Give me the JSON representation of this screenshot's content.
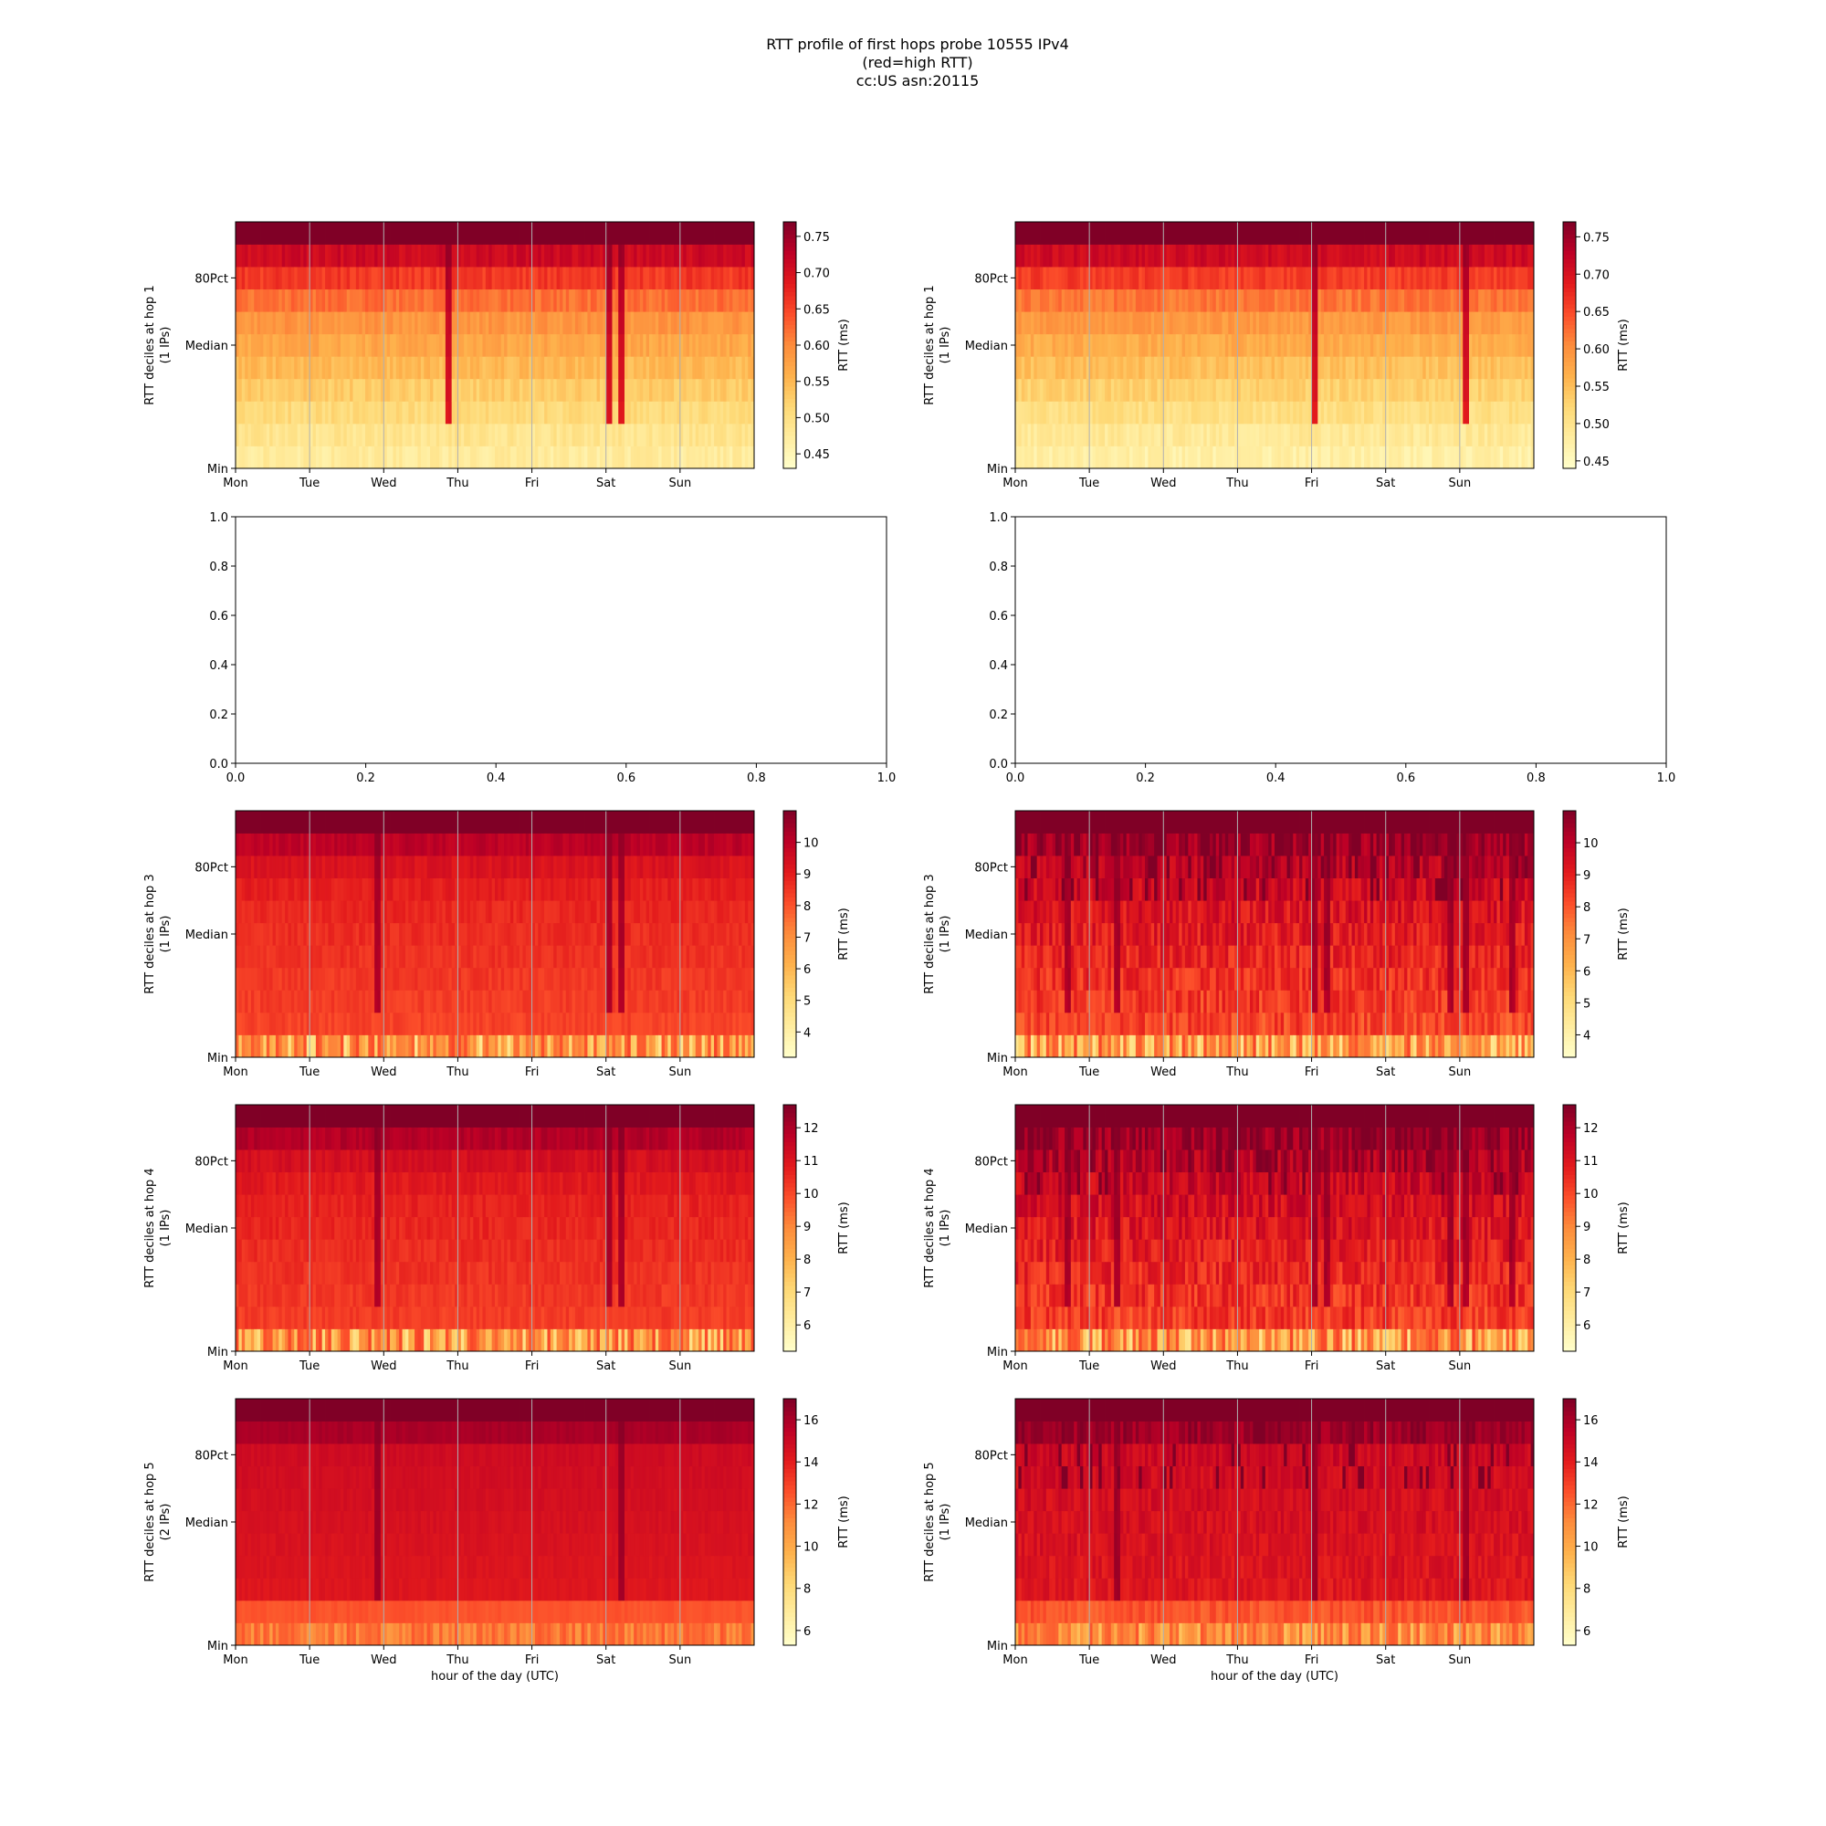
{
  "figure": {
    "title_lines": [
      "RTT profile of first hops probe 10555 IPv4",
      "(red=high RTT)",
      "cc:US asn:20115"
    ]
  },
  "chart_data": [
    {
      "type": "heatmap",
      "hop": 1,
      "ylabel": [
        "RTT deciles at hop 1",
        "(1 IPs)"
      ],
      "ytick_labels": [
        "Min",
        "Median",
        "80Pct"
      ],
      "x_ticks": [
        "Mon",
        "Tue",
        "Wed",
        "Thu",
        "Fri",
        "Sat",
        "Sun"
      ],
      "xlabel": "",
      "colorbar": {
        "label": "RTT (ms)",
        "ticks": [
          0.45,
          0.5,
          0.55,
          0.6,
          0.65,
          0.7,
          0.75
        ],
        "range": [
          0.43,
          0.77
        ]
      },
      "decile_rtt_ms": [
        0.46,
        0.49,
        0.51,
        0.53,
        0.55,
        0.57,
        0.59,
        0.62,
        0.66,
        0.71,
        0.77
      ],
      "variability": 0.015,
      "spike_hours": [
        68,
        120,
        124
      ],
      "vgrid": true
    },
    {
      "type": "heatmap",
      "hop": 1,
      "ylabel": [
        "RTT deciles at hop 1",
        "(1 IPs)"
      ],
      "ytick_labels": [
        "Min",
        "Median",
        "80Pct"
      ],
      "x_ticks": [
        "Mon",
        "Tue",
        "Wed",
        "Thu",
        "Fri",
        "Sat",
        "Sun"
      ],
      "xlabel": "",
      "colorbar": {
        "label": "RTT (ms)",
        "ticks": [
          0.45,
          0.5,
          0.55,
          0.6,
          0.65,
          0.7,
          0.75
        ],
        "range": [
          0.44,
          0.77
        ]
      },
      "decile_rtt_ms": [
        0.46,
        0.49,
        0.51,
        0.53,
        0.55,
        0.57,
        0.59,
        0.62,
        0.66,
        0.71,
        0.77
      ],
      "variability": 0.015,
      "spike_hours": [
        96,
        145
      ],
      "vgrid": true
    },
    {
      "type": "empty",
      "x_ticks": [
        "0.0",
        "0.2",
        "0.4",
        "0.6",
        "0.8",
        "1.0"
      ],
      "y_ticks": [
        "0.0",
        "0.2",
        "0.4",
        "0.6",
        "0.8",
        "1.0"
      ]
    },
    {
      "type": "empty",
      "x_ticks": [
        "0.0",
        "0.2",
        "0.4",
        "0.6",
        "0.8",
        "1.0"
      ],
      "y_ticks": [
        "0.0",
        "0.2",
        "0.4",
        "0.6",
        "0.8",
        "1.0"
      ]
    },
    {
      "type": "heatmap",
      "hop": 3,
      "ylabel": [
        "RTT deciles at hop 3",
        "(1 IPs)"
      ],
      "ytick_labels": [
        "Min",
        "Median",
        "80Pct"
      ],
      "x_ticks": [
        "Mon",
        "Tue",
        "Wed",
        "Thu",
        "Fri",
        "Sat",
        "Sun"
      ],
      "xlabel": "",
      "colorbar": {
        "label": "RTT (ms)",
        "ticks": [
          4,
          5,
          6,
          7,
          8,
          9,
          10
        ],
        "range": [
          3.2,
          11.0
        ]
      },
      "decile_rtt_ms": [
        4.5,
        8.3,
        8.4,
        8.5,
        8.6,
        8.7,
        8.8,
        9.0,
        9.3,
        10.0,
        11.0
      ],
      "variability": 0.25,
      "spike_hours": [
        45,
        120,
        124
      ],
      "vgrid": true
    },
    {
      "type": "heatmap",
      "hop": 3,
      "ylabel": [
        "RTT deciles at hop 3",
        "(1 IPs)"
      ],
      "ytick_labels": [
        "Min",
        "Median",
        "80Pct"
      ],
      "x_ticks": [
        "Mon",
        "Tue",
        "Wed",
        "Thu",
        "Fri",
        "Sat",
        "Sun"
      ],
      "xlabel": "",
      "colorbar": {
        "label": "RTT (ms)",
        "ticks": [
          4,
          5,
          6,
          7,
          8,
          9,
          10
        ],
        "range": [
          3.3,
          11.0
        ]
      },
      "decile_rtt_ms": [
        4.5,
        8.3,
        8.5,
        8.7,
        8.9,
        9.1,
        9.3,
        9.6,
        10.0,
        10.5,
        11.0
      ],
      "variability": 0.7,
      "spike_hours": [
        16,
        32,
        96,
        100,
        140,
        145,
        160
      ],
      "vgrid": true
    },
    {
      "type": "heatmap",
      "hop": 4,
      "ylabel": [
        "RTT deciles at hop 4",
        "(1 IPs)"
      ],
      "ytick_labels": [
        "Min",
        "Median",
        "80Pct"
      ],
      "x_ticks": [
        "Mon",
        "Tue",
        "Wed",
        "Thu",
        "Fri",
        "Sat",
        "Sun"
      ],
      "xlabel": "",
      "colorbar": {
        "label": "RTT (ms)",
        "ticks": [
          6,
          7,
          8,
          9,
          10,
          11,
          12
        ],
        "range": [
          5.2,
          12.7
        ]
      },
      "decile_rtt_ms": [
        6.5,
        10.2,
        10.3,
        10.4,
        10.5,
        10.6,
        10.7,
        10.9,
        11.2,
        11.9,
        12.7
      ],
      "variability": 0.25,
      "spike_hours": [
        45,
        120,
        124
      ],
      "vgrid": true
    },
    {
      "type": "heatmap",
      "hop": 4,
      "ylabel": [
        "RTT deciles at hop 4",
        "(1 IPs)"
      ],
      "ytick_labels": [
        "Min",
        "Median",
        "80Pct"
      ],
      "x_ticks": [
        "Mon",
        "Tue",
        "Wed",
        "Thu",
        "Fri",
        "Sat",
        "Sun"
      ],
      "xlabel": "",
      "colorbar": {
        "label": "RTT (ms)",
        "ticks": [
          6,
          7,
          8,
          9,
          10,
          11,
          12
        ],
        "range": [
          5.2,
          12.7
        ]
      },
      "decile_rtt_ms": [
        6.5,
        10.2,
        10.4,
        10.6,
        10.8,
        11.0,
        11.2,
        11.5,
        11.9,
        12.3,
        12.7
      ],
      "variability": 0.7,
      "spike_hours": [
        16,
        32,
        96,
        100,
        140,
        145,
        160
      ],
      "vgrid": true
    },
    {
      "type": "heatmap",
      "hop": 5,
      "ylabel": [
        "RTT deciles at hop 5",
        "(2 IPs)"
      ],
      "ytick_labels": [
        "Min",
        "Median",
        "80Pct"
      ],
      "x_ticks": [
        "Mon",
        "Tue",
        "Wed",
        "Thu",
        "Fri",
        "Sat",
        "Sun"
      ],
      "xlabel": "hour of the day (UTC)",
      "colorbar": {
        "label": "RTT (ms)",
        "ticks": [
          6,
          8,
          10,
          12,
          14,
          16
        ],
        "range": [
          5.3,
          17.0
        ]
      },
      "decile_rtt_ms": [
        10.5,
        12.5,
        14.3,
        14.4,
        14.5,
        14.6,
        14.7,
        14.8,
        14.9,
        16.0,
        17.0
      ],
      "variability": 0.2,
      "spike_hours": [
        45,
        124
      ],
      "vgrid": true
    },
    {
      "type": "heatmap",
      "hop": 5,
      "ylabel": [
        "RTT deciles at hop 5",
        "(1 IPs)"
      ],
      "ytick_labels": [
        "Min",
        "Median",
        "80Pct"
      ],
      "x_ticks": [
        "Mon",
        "Tue",
        "Wed",
        "Thu",
        "Fri",
        "Sat",
        "Sun"
      ],
      "xlabel": "hour of the day (UTC)",
      "colorbar": {
        "label": "RTT (ms)",
        "ticks": [
          6,
          8,
          10,
          12,
          14,
          16
        ],
        "range": [
          5.3,
          17.0
        ]
      },
      "decile_rtt_ms": [
        9.0,
        12.5,
        14.3,
        14.4,
        14.5,
        14.6,
        14.7,
        14.8,
        15.0,
        16.2,
        17.0
      ],
      "variability": 0.6,
      "spike_hours": [
        32,
        96,
        145
      ],
      "vgrid": true
    }
  ]
}
